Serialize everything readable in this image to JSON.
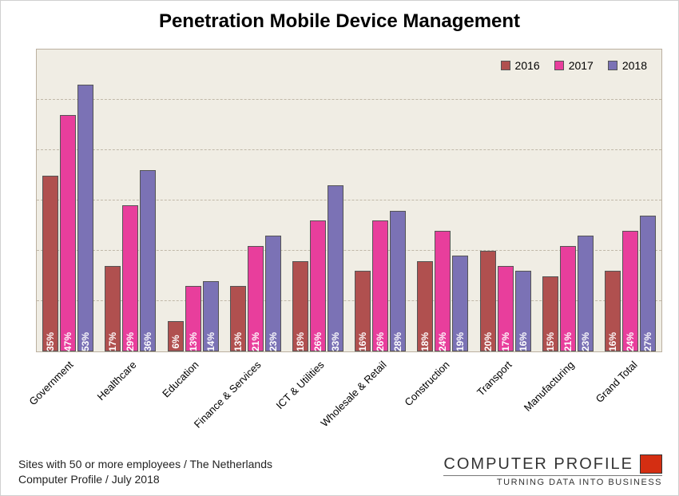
{
  "title": "Penetration Mobile Device Management",
  "title_fontsize": 24,
  "plot_background": "#f0ede4",
  "grid_color": "#c0b8a8",
  "axis_color": "#bbb0a0",
  "ymax": 60,
  "grid_step": 10,
  "series": [
    {
      "name": "2016",
      "color": "#b0504f"
    },
    {
      "name": "2017",
      "color": "#e83e9c"
    },
    {
      "name": "2018",
      "color": "#7b72b5"
    }
  ],
  "categories": [
    "Government",
    "Healthcare",
    "Education",
    "Finance & Services",
    "ICT & Utilities",
    "Wholesale & Retail",
    "Construction",
    "Transport",
    "Manufacturing",
    "Grand Total"
  ],
  "values": {
    "2016": [
      35,
      17,
      6,
      13,
      18,
      16,
      18,
      20,
      15,
      16
    ],
    "2017": [
      47,
      29,
      13,
      21,
      26,
      26,
      24,
      17,
      21,
      24
    ],
    "2018": [
      53,
      36,
      14,
      23,
      33,
      28,
      19,
      16,
      23,
      27
    ]
  },
  "xlabel_fontsize": 13,
  "bar_label_fontsize": 12,
  "legend_fontsize": 14,
  "footer_lines": [
    "Sites with 50 or more employees / The Netherlands",
    "Computer Profile / July 2018"
  ],
  "footer_fontsize": 14,
  "brand": {
    "name": "COMPUTER PROFILE",
    "name_fontsize": 20,
    "tagline": "TURNING DATA INTO BUSINESS",
    "tagline_fontsize": 11,
    "accent_color": "#d42e12"
  }
}
